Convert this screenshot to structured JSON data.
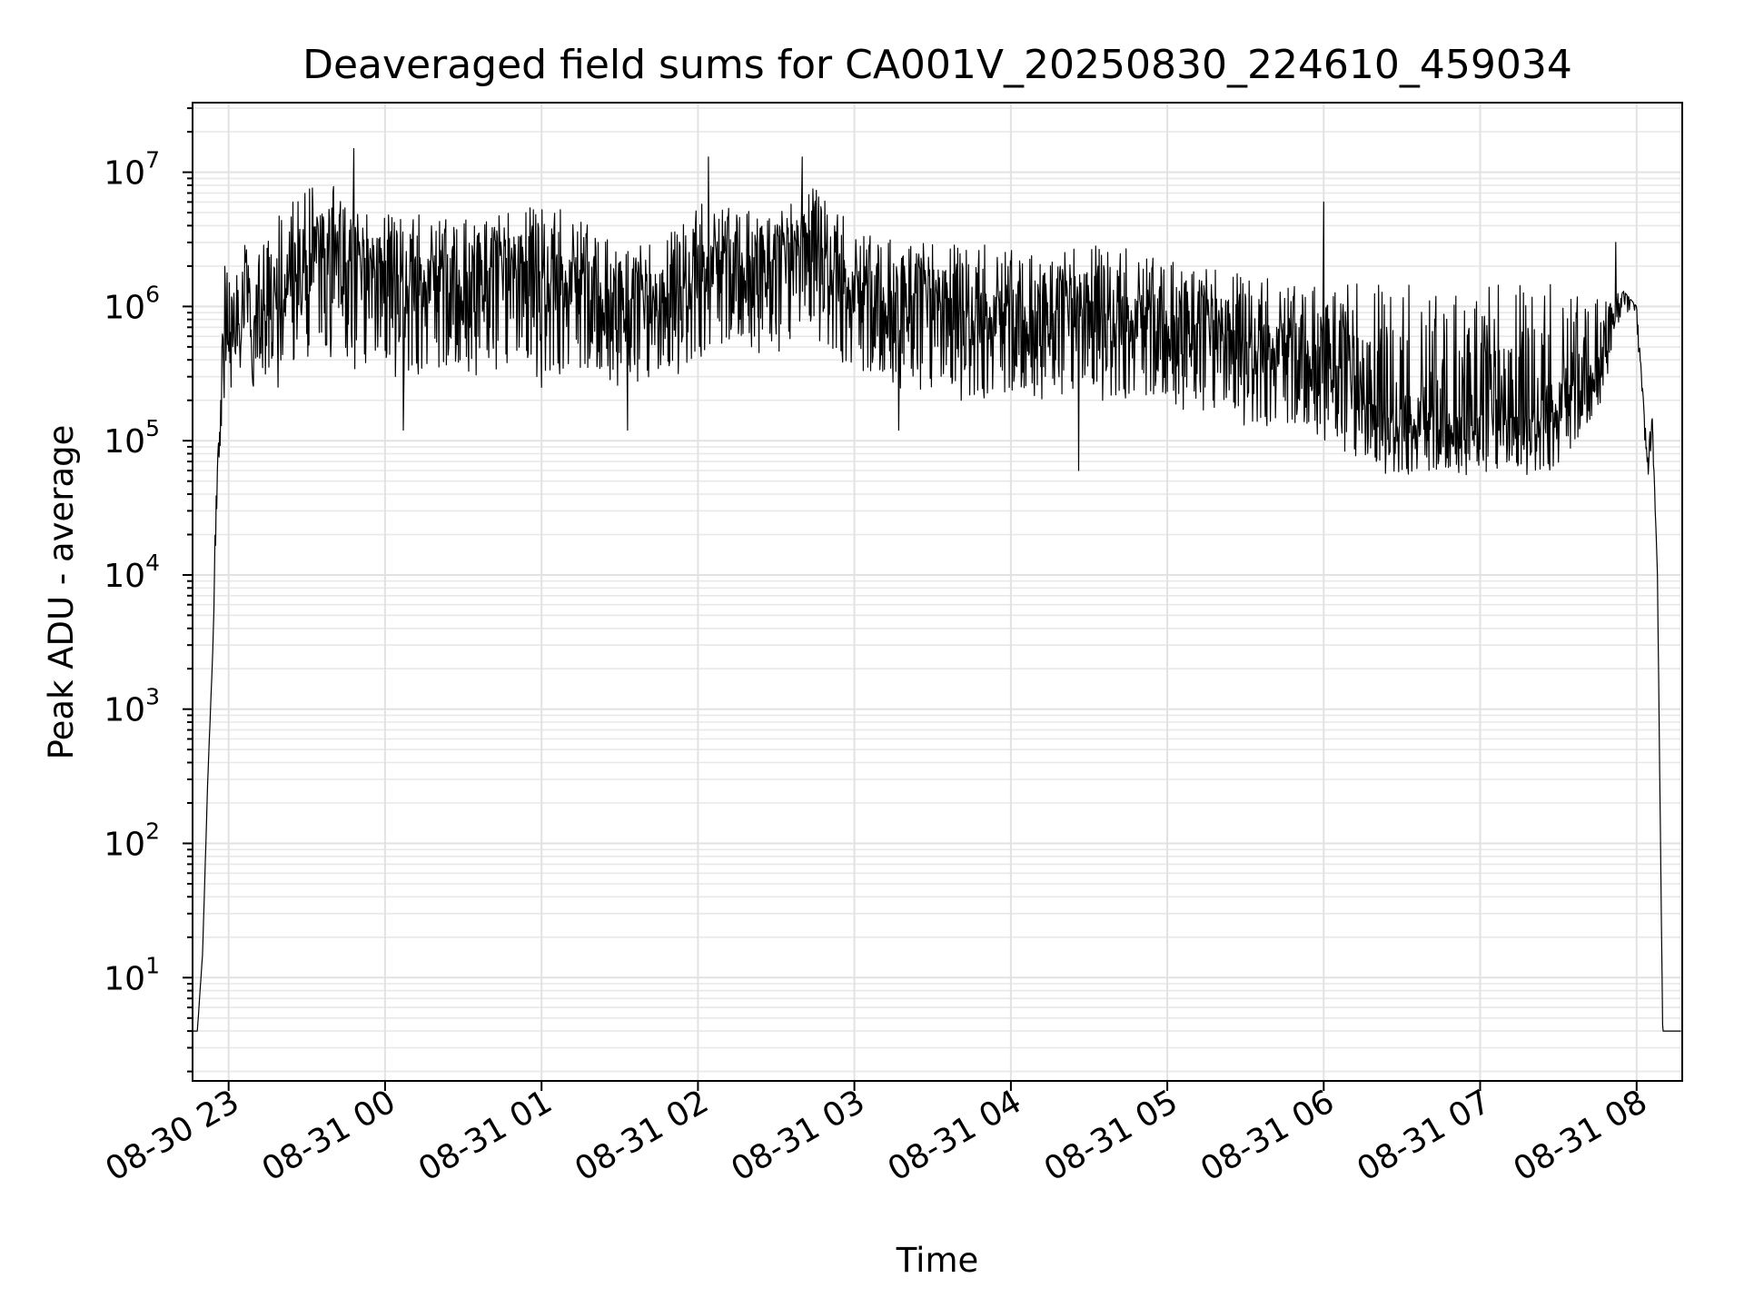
{
  "chart_data": {
    "type": "line",
    "title": "Deaveraged field sums for CA001V_20250830_224610_459034",
    "xlabel": "Time",
    "ylabel": "Peak ADU - average",
    "y_scale": "log",
    "ylim": [
      1.7,
      33000000
    ],
    "xlim": [
      "2025-08-30 22:46:10",
      "2025-08-31 08:17:30"
    ],
    "x_ticks": [
      {
        "value": "2025-08-30 23:00",
        "label": "08-30 23"
      },
      {
        "value": "2025-08-31 00:00",
        "label": "08-31 00"
      },
      {
        "value": "2025-08-31 01:00",
        "label": "08-31 01"
      },
      {
        "value": "2025-08-31 02:00",
        "label": "08-31 02"
      },
      {
        "value": "2025-08-31 03:00",
        "label": "08-31 03"
      },
      {
        "value": "2025-08-31 04:00",
        "label": "08-31 04"
      },
      {
        "value": "2025-08-31 05:00",
        "label": "08-31 05"
      },
      {
        "value": "2025-08-31 06:00",
        "label": "08-31 06"
      },
      {
        "value": "2025-08-31 07:00",
        "label": "08-31 07"
      },
      {
        "value": "2025-08-31 08:00",
        "label": "08-31 08"
      }
    ],
    "y_ticks": [
      {
        "value": 10,
        "base": "10",
        "exp": "1"
      },
      {
        "value": 100,
        "base": "10",
        "exp": "2"
      },
      {
        "value": 1000,
        "base": "10",
        "exp": "3"
      },
      {
        "value": 10000,
        "base": "10",
        "exp": "4"
      },
      {
        "value": 100000,
        "base": "10",
        "exp": "5"
      },
      {
        "value": 1000000,
        "base": "10",
        "exp": "6"
      },
      {
        "value": 10000000,
        "base": "10",
        "exp": "7"
      }
    ],
    "grid": true,
    "series": [
      {
        "color": "#000000",
        "x": [
          "2025-08-30 22:46",
          "2025-08-30 22:48",
          "2025-08-30 22:50",
          "2025-08-30 22:52",
          "2025-08-30 22:54",
          "2025-08-30 22:56",
          "2025-08-30 22:58",
          "2025-08-30 23:00",
          "2025-08-30 23:05",
          "2025-08-30 23:10",
          "2025-08-30 23:20",
          "2025-08-30 23:30",
          "2025-08-30 23:40",
          "2025-08-30 23:50",
          "2025-08-31 00:00",
          "2025-08-31 00:15",
          "2025-08-31 00:30",
          "2025-08-31 00:45",
          "2025-08-31 01:00",
          "2025-08-31 01:15",
          "2025-08-31 01:30",
          "2025-08-31 01:45",
          "2025-08-31 02:00",
          "2025-08-31 02:15",
          "2025-08-31 02:30",
          "2025-08-31 02:45",
          "2025-08-31 03:00",
          "2025-08-31 03:15",
          "2025-08-31 03:30",
          "2025-08-31 03:45",
          "2025-08-31 04:00",
          "2025-08-31 04:15",
          "2025-08-31 04:30",
          "2025-08-31 04:45",
          "2025-08-31 05:00",
          "2025-08-31 05:15",
          "2025-08-31 05:30",
          "2025-08-31 05:45",
          "2025-08-31 06:00",
          "2025-08-31 06:15",
          "2025-08-31 06:30",
          "2025-08-31 06:45",
          "2025-08-31 07:00",
          "2025-08-31 07:15",
          "2025-08-31 07:30",
          "2025-08-31 07:45",
          "2025-08-31 07:55",
          "2025-08-31 08:00",
          "2025-08-31 08:02",
          "2025-08-31 08:04",
          "2025-08-31 08:06",
          "2025-08-31 08:08",
          "2025-08-31 08:10",
          "2025-08-31 08:17"
        ],
        "y": [
          4,
          4,
          15,
          300,
          3000,
          100000,
          400000,
          600000,
          800000,
          700000,
          1200000,
          2000000,
          2500000,
          2000000,
          2200000,
          2000000,
          1800000,
          2000000,
          2300000,
          1800000,
          1200000,
          1000000,
          2500000,
          2500000,
          2200000,
          4000000,
          1500000,
          1300000,
          1200000,
          1100000,
          1000000,
          900000,
          1100000,
          1000000,
          900000,
          700000,
          650000,
          600000,
          500000,
          200000,
          150000,
          150000,
          150000,
          150000,
          200000,
          400000,
          1300000,
          1000000,
          300000,
          70000,
          150000,
          10000,
          4,
          4
        ],
        "band_high": [
          4,
          4,
          15,
          300,
          3000,
          1000000,
          2000000,
          3000000,
          3000000,
          2500000,
          5000000,
          8000000,
          8000000,
          5000000,
          5000000,
          5000000,
          5000000,
          5000000,
          6000000,
          5000000,
          3000000,
          3000000,
          6000000,
          6000000,
          5000000,
          8000000,
          4000000,
          3500000,
          3000000,
          3000000,
          3000000,
          2500000,
          3000000,
          2800000,
          2500000,
          2000000,
          1800000,
          1600000,
          1600000,
          1600000,
          1600000,
          1600000,
          1600000,
          1600000,
          1600000,
          1300000,
          1300000,
          1000000,
          300000,
          100000,
          150000,
          10000,
          4,
          4
        ],
        "band_low": [
          4,
          4,
          15,
          300,
          3000,
          50000,
          200000,
          250000,
          250000,
          250000,
          250000,
          300000,
          300000,
          300000,
          300000,
          300000,
          300000,
          300000,
          300000,
          300000,
          250000,
          250000,
          400000,
          500000,
          400000,
          600000,
          300000,
          250000,
          200000,
          200000,
          200000,
          200000,
          200000,
          200000,
          180000,
          150000,
          130000,
          120000,
          100000,
          60000,
          55000,
          55000,
          55000,
          55000,
          60000,
          150000,
          1000000,
          700000,
          200000,
          40000,
          100000,
          10000,
          4,
          4
        ],
        "spikes": [
          {
            "x": "2025-08-30 23:48",
            "y": 15000000
          },
          {
            "x": "2025-08-31 00:07",
            "y": 120000
          },
          {
            "x": "2025-08-31 01:00",
            "y": 250000
          },
          {
            "x": "2025-08-31 01:33",
            "y": 120000
          },
          {
            "x": "2025-08-31 02:04",
            "y": 13000000
          },
          {
            "x": "2025-08-31 02:40",
            "y": 13000000
          },
          {
            "x": "2025-08-31 03:17",
            "y": 120000
          },
          {
            "x": "2025-08-31 04:26",
            "y": 60000
          },
          {
            "x": "2025-08-31 06:00",
            "y": 6000000
          },
          {
            "x": "2025-08-31 07:52",
            "y": 3000000
          }
        ]
      }
    ]
  }
}
